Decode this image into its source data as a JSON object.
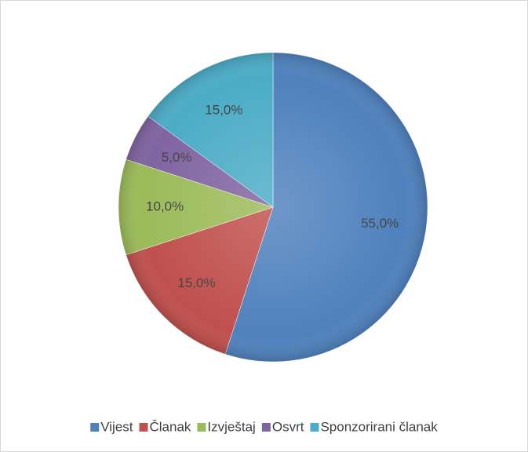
{
  "chart_data": {
    "type": "pie",
    "categories": [
      "Vijest",
      "Članak",
      "Izvještaj",
      "Osvrt",
      "Sponzorirani članak"
    ],
    "values": [
      55,
      15,
      10,
      5,
      15
    ],
    "value_labels": [
      "55,0%",
      "15,0%",
      "10,0%",
      "5,0%",
      "15,0%"
    ],
    "colors": [
      "#4f81bd",
      "#c0504d",
      "#9bbb59",
      "#8064a2",
      "#4bacc6"
    ],
    "legend": "bottom"
  }
}
